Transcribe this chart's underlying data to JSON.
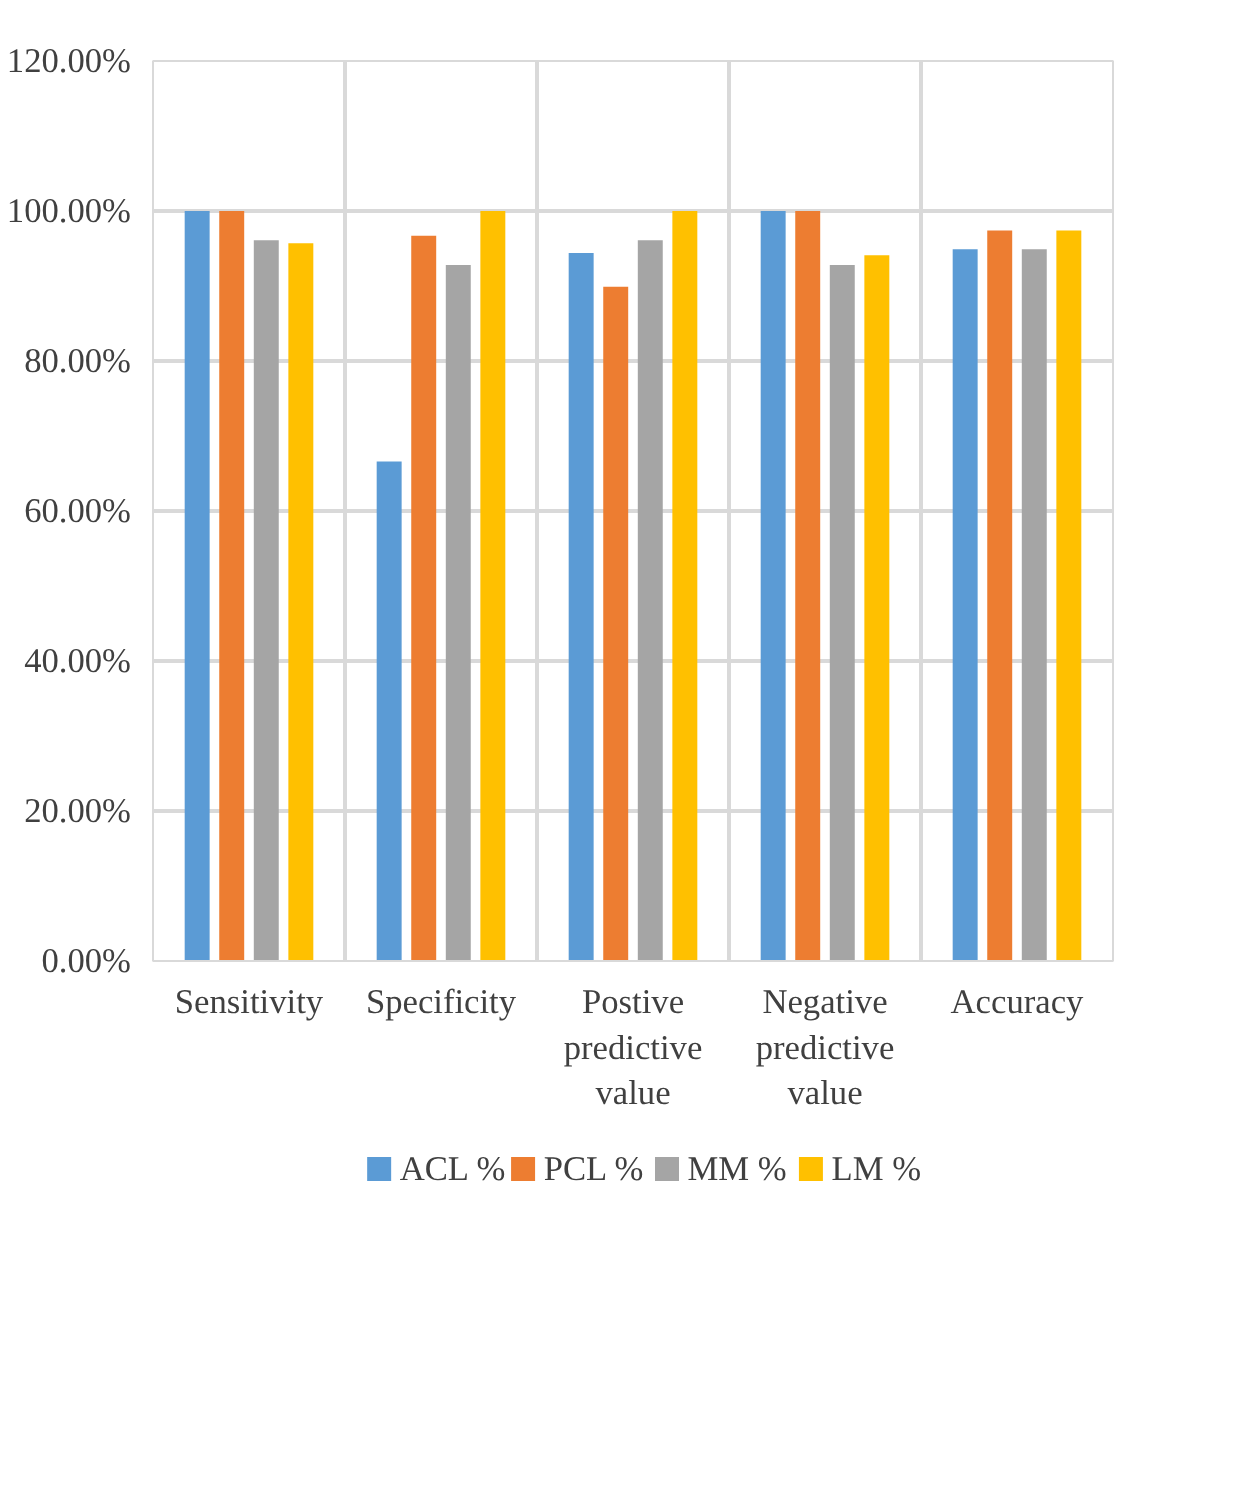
{
  "chart_data": {
    "type": "bar",
    "categories": [
      "Sensitivity",
      "Specificity",
      "Postive predictive value",
      "Negative predictive value",
      "Accuracy"
    ],
    "series": [
      {
        "name": "ACL %",
        "color": "#5b9bd5",
        "values": [
          100,
          66.6,
          94.4,
          100,
          94.9
        ]
      },
      {
        "name": "PCL %",
        "color": "#ed7d31",
        "values": [
          100,
          96.7,
          89.9,
          100,
          97.4
        ]
      },
      {
        "name": "MM %",
        "color": "#a5a5a5",
        "values": [
          96.1,
          92.8,
          96.1,
          92.8,
          94.9
        ]
      },
      {
        "name": "LM %",
        "color": "#ffc000",
        "values": [
          95.7,
          100,
          100,
          94.1,
          97.4
        ]
      }
    ],
    "ylim": [
      0,
      120
    ],
    "yticks": [
      {
        "value": 0,
        "label": "0.00%"
      },
      {
        "value": 20,
        "label": "20.00%"
      },
      {
        "value": 40,
        "label": "40.00%"
      },
      {
        "value": 60,
        "label": "60.00%"
      },
      {
        "value": 80,
        "label": "80.00%"
      },
      {
        "value": 100,
        "label": "100.00%"
      },
      {
        "value": 120,
        "label": "120.00%"
      }
    ],
    "grid": true,
    "legend": "bottom"
  }
}
